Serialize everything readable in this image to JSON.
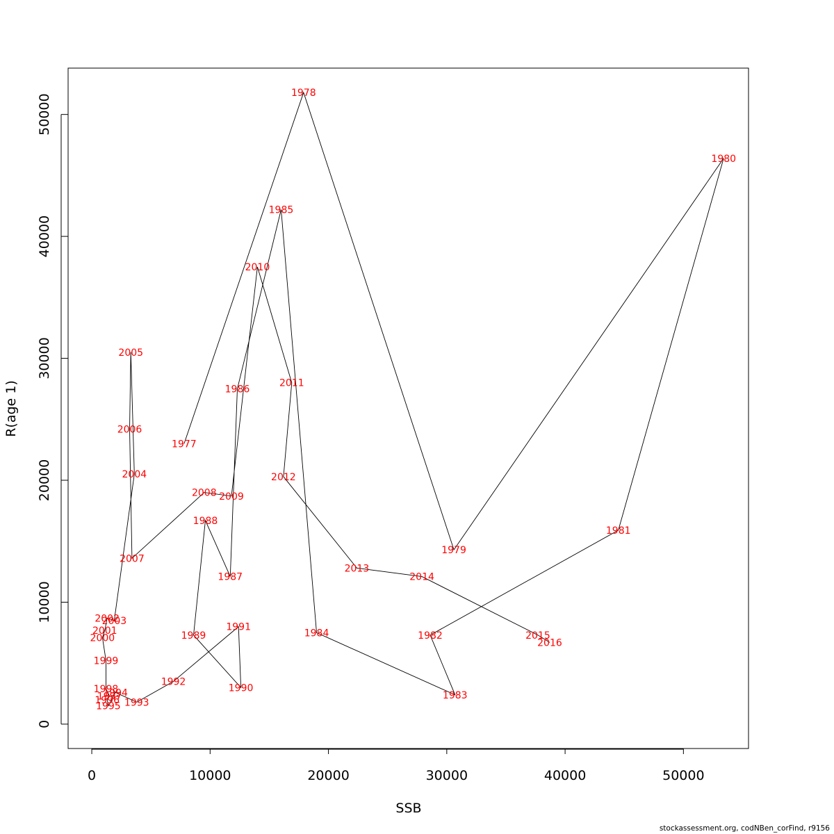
{
  "footer_note": "stockassessment.org, codNBen_corFind, r9156",
  "chart_data": {
    "type": "line",
    "title": "",
    "xlabel": "SSB",
    "ylabel": "R(age 1)",
    "xlim": [
      -2000,
      55500
    ],
    "ylim": [
      -2000,
      53800
    ],
    "xticks": [
      0,
      10000,
      20000,
      30000,
      40000,
      50000
    ],
    "yticks": [
      0,
      10000,
      20000,
      30000,
      40000,
      50000
    ],
    "grid": false,
    "legend": "none",
    "line_color": "#000000",
    "label_color": "#ff0000",
    "points": [
      {
        "year": "1977",
        "ssb": 7800,
        "r": 23000
      },
      {
        "year": "1978",
        "ssb": 17900,
        "r": 51800
      },
      {
        "year": "1979",
        "ssb": 30600,
        "r": 14300
      },
      {
        "year": "1980",
        "ssb": 53400,
        "r": 46400
      },
      {
        "year": "1981",
        "ssb": 44500,
        "r": 15900
      },
      {
        "year": "1982",
        "ssb": 28600,
        "r": 7300
      },
      {
        "year": "1983",
        "ssb": 30700,
        "r": 2400
      },
      {
        "year": "1984",
        "ssb": 19000,
        "r": 7500
      },
      {
        "year": "1985",
        "ssb": 16000,
        "r": 42200
      },
      {
        "year": "1986",
        "ssb": 12300,
        "r": 27500
      },
      {
        "year": "1987",
        "ssb": 11700,
        "r": 12100
      },
      {
        "year": "1988",
        "ssb": 9600,
        "r": 16700
      },
      {
        "year": "1989",
        "ssb": 8600,
        "r": 7300
      },
      {
        "year": "1990",
        "ssb": 12600,
        "r": 3000
      },
      {
        "year": "1991",
        "ssb": 12400,
        "r": 8000
      },
      {
        "year": "1992",
        "ssb": 6900,
        "r": 3500
      },
      {
        "year": "1993",
        "ssb": 3800,
        "r": 1800
      },
      {
        "year": "1994",
        "ssb": 2000,
        "r": 2600
      },
      {
        "year": "1995",
        "ssb": 1400,
        "r": 1500
      },
      {
        "year": "1996",
        "ssb": 1300,
        "r": 2000
      },
      {
        "year": "1997",
        "ssb": 1500,
        "r": 2300
      },
      {
        "year": "1998",
        "ssb": 1200,
        "r": 2900
      },
      {
        "year": "1999",
        "ssb": 1200,
        "r": 5200
      },
      {
        "year": "2000",
        "ssb": 900,
        "r": 7100
      },
      {
        "year": "2001",
        "ssb": 1100,
        "r": 7700
      },
      {
        "year": "2002",
        "ssb": 1300,
        "r": 8700
      },
      {
        "year": "2003",
        "ssb": 1900,
        "r": 8500
      },
      {
        "year": "2004",
        "ssb": 3600,
        "r": 20500
      },
      {
        "year": "2005",
        "ssb": 3300,
        "r": 30500
      },
      {
        "year": "2006",
        "ssb": 3200,
        "r": 24200
      },
      {
        "year": "2007",
        "ssb": 3400,
        "r": 13600
      },
      {
        "year": "2008",
        "ssb": 9500,
        "r": 19000
      },
      {
        "year": "2009",
        "ssb": 11800,
        "r": 18700
      },
      {
        "year": "2010",
        "ssb": 14000,
        "r": 37500
      },
      {
        "year": "2011",
        "ssb": 16900,
        "r": 28000
      },
      {
        "year": "2012",
        "ssb": 16200,
        "r": 20300
      },
      {
        "year": "2013",
        "ssb": 22400,
        "r": 12800
      },
      {
        "year": "2014",
        "ssb": 27900,
        "r": 12100
      },
      {
        "year": "2015",
        "ssb": 37700,
        "r": 7300
      },
      {
        "year": "2016",
        "ssb": 38700,
        "r": 6700
      }
    ]
  }
}
